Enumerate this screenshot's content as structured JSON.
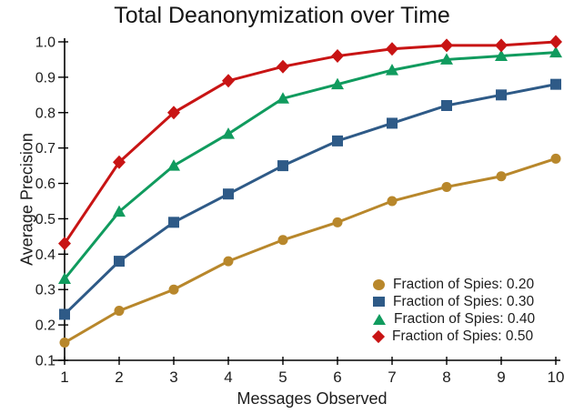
{
  "title": "Total Deanonymization over Time",
  "colors": {
    "background": "#ffffff",
    "text": "#1d1d1d",
    "axis": "#000000"
  },
  "chart_data": {
    "type": "line",
    "title": "Total Deanonymization over Time",
    "xlabel": "Messages Observed",
    "ylabel": "Average Precision",
    "xlim": [
      1,
      10
    ],
    "ylim": [
      0.1,
      1.0
    ],
    "grid": false,
    "legend_position": "lower right inside plot",
    "x": [
      1,
      2,
      3,
      4,
      5,
      6,
      7,
      8,
      9,
      10
    ],
    "xtick_labels": [
      "1",
      "2",
      "3",
      "4",
      "5",
      "6",
      "7",
      "8",
      "9",
      "10"
    ],
    "yticks": [
      0.1,
      0.2,
      0.3,
      0.4,
      0.5,
      0.6,
      0.7,
      0.8,
      0.9,
      1.0
    ],
    "ytick_labels": [
      "0.1",
      "0.2",
      "0.3",
      "0.4",
      "0.5",
      "0.6",
      "0.7",
      "0.8",
      "0.9",
      "1.0"
    ],
    "series": [
      {
        "name": "Fraction of Spies: 0.20",
        "marker": "circle",
        "color": "#B8872B",
        "values": [
          0.15,
          0.24,
          0.3,
          0.38,
          0.44,
          0.49,
          0.55,
          0.59,
          0.62,
          0.67
        ]
      },
      {
        "name": "Fraction of Spies: 0.30",
        "marker": "square",
        "color": "#2E5A87",
        "values": [
          0.23,
          0.38,
          0.49,
          0.57,
          0.65,
          0.72,
          0.77,
          0.82,
          0.85,
          0.88
        ]
      },
      {
        "name": "Fraction of Spies: 0.40",
        "marker": "triangle",
        "color": "#109B5E",
        "values": [
          0.33,
          0.52,
          0.65,
          0.74,
          0.84,
          0.88,
          0.92,
          0.95,
          0.96,
          0.97
        ]
      },
      {
        "name": "Fraction of Spies: 0.50",
        "marker": "diamond",
        "color": "#C81414",
        "values": [
          0.43,
          0.66,
          0.8,
          0.89,
          0.93,
          0.96,
          0.98,
          0.99,
          0.99,
          1.0
        ]
      }
    ]
  }
}
